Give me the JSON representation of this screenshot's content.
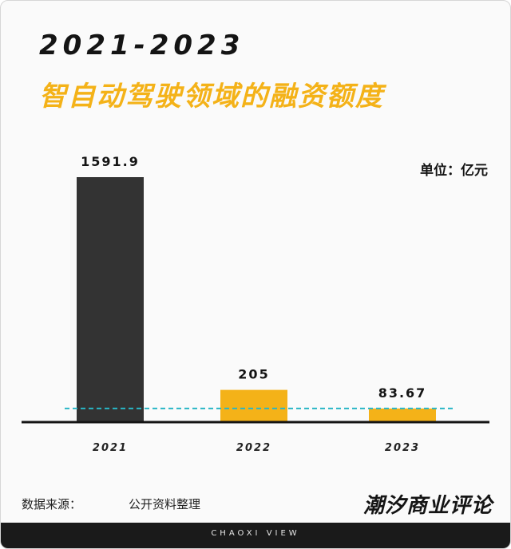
{
  "title": {
    "line1": "2021-2023",
    "line2": "智自动驾驶领域的融资额度"
  },
  "unit": "单位：亿元",
  "source": {
    "label": "数据来源：",
    "value": "公开资料整理"
  },
  "brand": "潮汐商业评论",
  "footer": "CHAOXI VIEW",
  "colors": {
    "dark_bar": "#333333",
    "accent": "#f4b218",
    "reference_line": "#29b6c6",
    "axis": "#141414"
  },
  "chart_data": {
    "type": "bar",
    "categories": [
      "2021",
      "2022",
      "2023"
    ],
    "values": [
      1591.9,
      205,
      83.67
    ],
    "value_labels": [
      "1591.9",
      "205",
      "83.67"
    ],
    "bar_colors": [
      "#333333",
      "#f4b218",
      "#f4b218"
    ],
    "reference_line": {
      "value": 83.67,
      "style": "dashed",
      "color": "#29b6c6"
    },
    "title": "2021-2023 智自动驾驶领域的融资额度",
    "ylabel": "",
    "xlabel": "",
    "unit": "单位：亿元",
    "ylim": [
      0,
      1591.9
    ],
    "grid": false,
    "legend": "none"
  }
}
